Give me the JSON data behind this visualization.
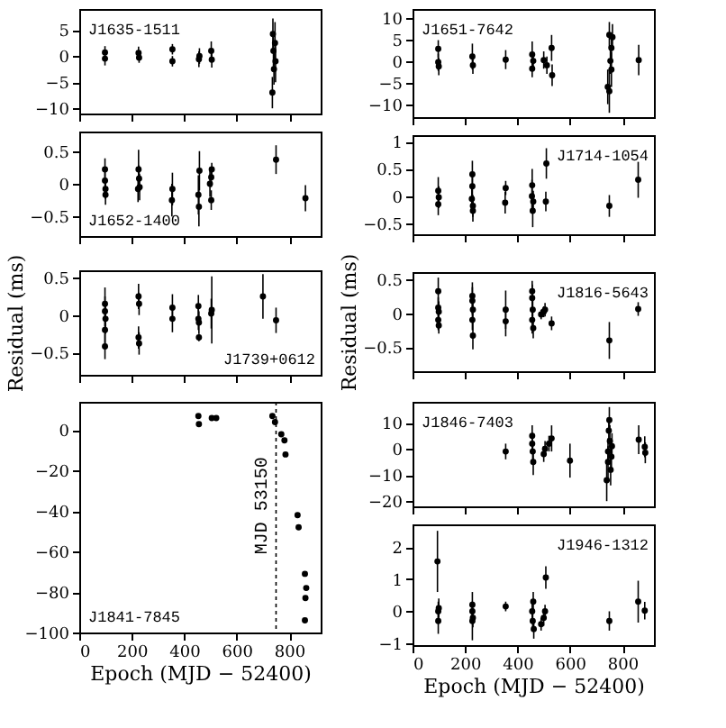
{
  "chart_data": [
    {
      "type": "scatter",
      "marker": "circle",
      "grid": false,
      "tick_labels": "y",
      "xlim": [
        0,
        920
      ],
      "xticks": [
        0,
        200,
        400,
        600,
        800
      ],
      "ylim": [
        -11,
        9
      ],
      "yticks": [
        5,
        0,
        -5,
        -10
      ],
      "annotations": [
        "J1635-1511"
      ],
      "x": [
        98,
        98,
        226,
        228,
        355,
        355,
        456,
        458,
        503,
        505,
        738,
        740,
        742,
        736,
        746,
        748
      ],
      "values": [
        0.7,
        -0.5,
        0.6,
        -0.3,
        1.3,
        -1,
        -0.6,
        0,
        1,
        -0.7,
        4.2,
        1,
        -2.5,
        -7,
        2.5,
        -1
      ],
      "errors": [
        1.2,
        1.3,
        1.2,
        1,
        1,
        1,
        1.5,
        1.5,
        1.8,
        1.5,
        3,
        3,
        3,
        3,
        4,
        4
      ]
    },
    {
      "type": "scatter",
      "marker": "circle",
      "grid": false,
      "tick_labels": "y",
      "xlim": [
        0,
        920
      ],
      "xticks": [
        0,
        200,
        400,
        600,
        800
      ],
      "ylim": [
        -0.8,
        0.8
      ],
      "yticks": [
        0.5,
        0,
        -0.5
      ],
      "annotations": [
        "J1652-1400"
      ],
      "x": [
        98,
        98,
        100,
        100,
        226,
        228,
        224,
        230,
        355,
        353,
        454,
        456,
        458,
        498,
        503,
        503,
        505,
        750,
        862
      ],
      "values": [
        0.22,
        0.05,
        -0.08,
        -0.17,
        0.22,
        0.08,
        -0.08,
        -0.05,
        -0.08,
        -0.25,
        -0.17,
        -0.35,
        0.2,
        0,
        0.1,
        -0.25,
        0.22,
        0.37,
        -0.22
      ],
      "errors": [
        0.17,
        0.15,
        0.15,
        0.15,
        0.3,
        0.2,
        0.2,
        0.2,
        0.25,
        0.25,
        0.3,
        0.3,
        0.3,
        0.2,
        0.15,
        0.15,
        0.1,
        0.22,
        0.2
      ]
    },
    {
      "type": "scatter",
      "marker": "circle",
      "grid": false,
      "tick_labels": "y",
      "xlim": [
        0,
        920
      ],
      "xticks": [
        0,
        200,
        400,
        600,
        800
      ],
      "ylim": [
        -0.8,
        0.6
      ],
      "yticks": [
        0.5,
        0,
        -0.5
      ],
      "ylabel": "Residual (ms)",
      "annotations": [
        "J1739+0612"
      ],
      "x": [
        98,
        98,
        100,
        98,
        98,
        226,
        228,
        226,
        228,
        355,
        355,
        454,
        454,
        456,
        456,
        503,
        505,
        700,
        750
      ],
      "values": [
        0.15,
        0.05,
        -0.05,
        -0.2,
        -0.42,
        0.25,
        0.15,
        -0.3,
        -0.38,
        0.1,
        -0.05,
        0.12,
        -0.05,
        -0.1,
        -0.3,
        0.02,
        0.07,
        0.25,
        -0.07
      ],
      "errors": [
        0.22,
        0.2,
        0.2,
        0.2,
        0.17,
        0.17,
        0.15,
        0.15,
        0.15,
        0.18,
        0.18,
        0.15,
        0.15,
        0.15,
        0.05,
        0.2,
        0.45,
        0.3,
        0.17
      ]
    },
    {
      "type": "scatter",
      "marker": "circle",
      "grid": false,
      "xlim": [
        0,
        920
      ],
      "xticks": [
        0,
        200,
        400,
        600,
        800
      ],
      "ylim": [
        -100,
        14
      ],
      "yticks": [
        0,
        -20,
        -40,
        -60,
        -80,
        -100
      ],
      "xlabel": "Epoch (MJD − 52400)",
      "annotations": [
        "J1841-7845"
      ],
      "ref_lines": [
        {
          "axis": "x",
          "value": 750,
          "label": "MJD 53150",
          "line_style": "dotted"
        }
      ],
      "x": [
        454,
        456,
        505,
        522,
        736,
        746,
        770,
        782,
        786,
        832,
        836,
        860,
        865,
        862,
        860
      ],
      "values": [
        7,
        3,
        6,
        6,
        7,
        4,
        -2,
        -5,
        -12,
        -42,
        -48,
        -71,
        -78,
        -83,
        -94
      ]
    },
    {
      "type": "scatter",
      "marker": "circle",
      "grid": false,
      "tick_labels": "y",
      "xlim": [
        0,
        920
      ],
      "xticks": [
        0,
        200,
        400,
        600,
        800
      ],
      "ylim": [
        -13,
        12
      ],
      "yticks": [
        10,
        5,
        0,
        -5,
        -10
      ],
      "annotations": [
        "J1651-7642"
      ],
      "x": [
        98,
        98,
        100,
        228,
        230,
        355,
        456,
        456,
        460,
        500,
        512,
        530,
        532,
        750,
        744,
        754,
        758,
        762,
        750,
        758,
        862
      ],
      "values": [
        2.8,
        -0.3,
        -1.3,
        1,
        -1,
        0.3,
        1.5,
        -1.8,
        0,
        0.2,
        -1,
        3,
        -3.3,
        6,
        -6,
        0,
        -2,
        5.5,
        -7,
        3,
        0.2
      ],
      "errors": [
        2,
        2,
        2,
        3,
        2,
        2.2,
        3,
        2,
        2,
        2,
        2,
        3,
        2.5,
        3,
        4,
        3,
        4,
        3,
        5,
        3,
        3.5
      ]
    },
    {
      "type": "scatter",
      "marker": "circle",
      "grid": false,
      "tick_labels": "y",
      "xlim": [
        0,
        920
      ],
      "xticks": [
        0,
        200,
        400,
        600,
        800
      ],
      "ylim": [
        -0.7,
        1.12
      ],
      "yticks": [
        1,
        0.5,
        0,
        -0.5
      ],
      "annotations": [
        "J1714-1054"
      ],
      "x": [
        98,
        100,
        98,
        228,
        228,
        226,
        230,
        230,
        355,
        353,
        456,
        455,
        458,
        460,
        508,
        510,
        750,
        860
      ],
      "values": [
        0.1,
        -0.02,
        -0.15,
        0.4,
        0.18,
        -0.05,
        -0.18,
        -0.27,
        0.15,
        -0.12,
        0.2,
        0,
        -0.27,
        -0.1,
        -0.1,
        0.6,
        -0.18,
        0.3
      ],
      "errors": [
        0.25,
        0.2,
        0.2,
        0.25,
        0.2,
        0.25,
        0.2,
        0.2,
        0.13,
        0.2,
        0.3,
        0.3,
        0.3,
        0.2,
        0.18,
        0.28,
        0.2,
        0.33
      ]
    },
    {
      "type": "scatter",
      "marker": "circle",
      "grid": false,
      "tick_labels": "y",
      "xlim": [
        0,
        920
      ],
      "xticks": [
        0,
        200,
        400,
        600,
        800
      ],
      "ylim": [
        -0.85,
        0.6
      ],
      "yticks": [
        0.5,
        0,
        -0.5
      ],
      "ylabel": "Residual (ms)",
      "annotations": [
        "J1816-5643"
      ],
      "x": [
        98,
        98,
        100,
        98,
        100,
        228,
        228,
        230,
        228,
        230,
        355,
        355,
        456,
        456,
        458,
        456,
        460,
        490,
        500,
        505,
        530,
        750,
        860
      ],
      "values": [
        0.32,
        0.08,
        0.02,
        -0.1,
        -0.18,
        0.25,
        0.18,
        0.05,
        -0.1,
        -0.33,
        0.05,
        -0.12,
        0.32,
        0.22,
        0.05,
        -0.1,
        -0.22,
        -0.02,
        0.02,
        0.05,
        -0.15,
        -0.4,
        0.06
      ],
      "errors": [
        0.2,
        0.15,
        0.15,
        0.15,
        0.12,
        0.2,
        0.2,
        0.15,
        0.15,
        0.2,
        0.28,
        0.22,
        0.15,
        0.2,
        0.15,
        0.2,
        0.15,
        0.07,
        0.08,
        0.1,
        0.1,
        0.27,
        0.1
      ]
    },
    {
      "type": "scatter",
      "marker": "circle",
      "grid": false,
      "tick_labels": "y",
      "xlim": [
        0,
        920
      ],
      "xticks": [
        0,
        200,
        400,
        600,
        800
      ],
      "ylim": [
        -22,
        18
      ],
      "yticks": [
        10,
        0,
        -10,
        -20
      ],
      "annotations": [
        "J1846-7403"
      ],
      "x": [
        355,
        456,
        456,
        458,
        460,
        500,
        505,
        520,
        530,
        600,
        745,
        750,
        748,
        752,
        745,
        740,
        755,
        758,
        760,
        862,
        885,
        887
      ],
      "values": [
        -1,
        5,
        2,
        -1,
        -5,
        -2,
        0,
        2,
        4,
        -4.5,
        -1,
        11,
        7,
        3,
        -5,
        -12,
        -8,
        -3,
        1,
        3.5,
        0.8,
        -1.5
      ],
      "errors": [
        3,
        4,
        4,
        4,
        5,
        3,
        3,
        3,
        5,
        6.5,
        5,
        5,
        5,
        6,
        6,
        8,
        6,
        5,
        5,
        5.5,
        4,
        4
      ]
    },
    {
      "type": "scatter",
      "marker": "circle",
      "grid": false,
      "xlim": [
        0,
        920
      ],
      "xticks": [
        0,
        200,
        400,
        600,
        800
      ],
      "ylim": [
        -1.05,
        2.7
      ],
      "yticks": [
        2,
        1,
        0,
        -1
      ],
      "xlabel": "Epoch (MJD − 52400)",
      "annotations": [
        "J1946-1312"
      ],
      "x": [
        95,
        98,
        100,
        98,
        228,
        228,
        230,
        228,
        355,
        456,
        458,
        460,
        462,
        490,
        500,
        505,
        508,
        750,
        860,
        885
      ],
      "values": [
        1.55,
        0,
        0.1,
        -0.3,
        0.2,
        0,
        -0.2,
        -0.3,
        0.15,
        0,
        -0.3,
        0.3,
        -0.55,
        -0.4,
        -0.2,
        0,
        1.05,
        -0.3,
        0.3,
        0.02
      ],
      "errors": [
        0.95,
        0.3,
        0.3,
        0.4,
        0.4,
        0.3,
        0.3,
        0.6,
        0.15,
        0.3,
        0.3,
        0.3,
        0.3,
        0.2,
        0.25,
        0.2,
        0.35,
        0.3,
        0.65,
        0.27
      ]
    }
  ]
}
